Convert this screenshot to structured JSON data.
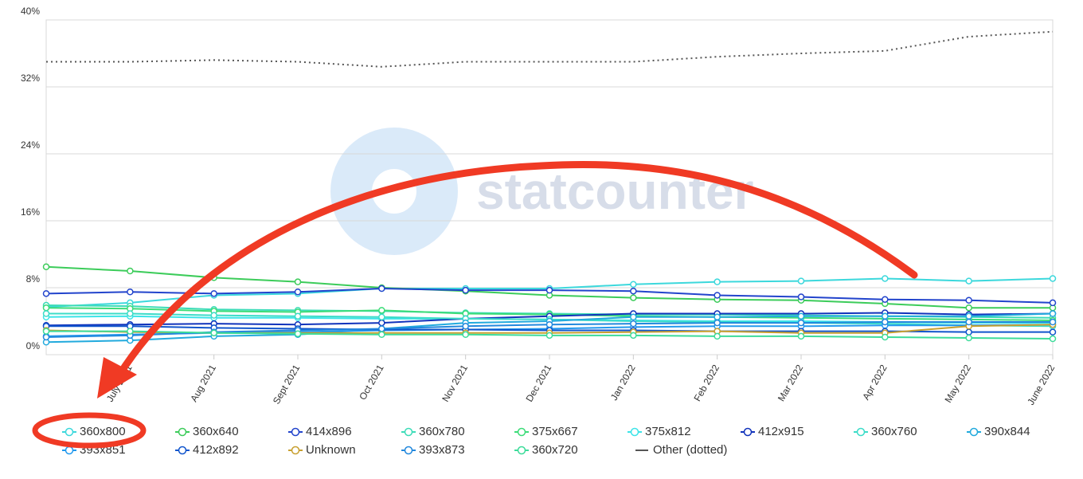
{
  "chart_data": {
    "type": "line",
    "watermark": "statcounter",
    "categories": [
      null,
      "July 2021",
      "Aug 2021",
      "Sept 2021",
      "Oct 2021",
      "Nov 2021",
      "Dec 2021",
      "Jan 2022",
      "Feb 2022",
      "Mar 2022",
      "Apr 2022",
      "May 2022",
      "June 2022"
    ],
    "ylim": [
      0,
      40
    ],
    "yticks": [
      {
        "value": 0,
        "label": "0%"
      },
      {
        "value": 8,
        "label": "8%"
      },
      {
        "value": 16,
        "label": "16%"
      },
      {
        "value": 24,
        "label": "24%"
      },
      {
        "value": 32,
        "label": "32%"
      },
      {
        "value": 40,
        "label": "40%"
      }
    ],
    "grid": true,
    "series": [
      {
        "name": "360x800",
        "color": "#3cd8dc",
        "values": [
          5.7,
          6.2,
          7.1,
          7.3,
          7.9,
          7.9,
          7.9,
          8.4,
          8.7,
          8.8,
          9.1,
          8.8,
          9.1
        ]
      },
      {
        "name": "360x640",
        "color": "#3ccc5a",
        "values": [
          10.5,
          10.0,
          9.2,
          8.7,
          8.0,
          7.6,
          7.1,
          6.8,
          6.6,
          6.5,
          6.1,
          5.6,
          5.6
        ]
      },
      {
        "name": "414x896",
        "color": "#2244cc",
        "values": [
          7.3,
          7.5,
          7.3,
          7.5,
          7.9,
          7.7,
          7.7,
          7.6,
          7.1,
          6.9,
          6.6,
          6.5,
          6.2
        ]
      },
      {
        "name": "360x780",
        "color": "#3cdcb8",
        "values": [
          5.9,
          5.8,
          5.4,
          5.3,
          5.2,
          5.0,
          4.9,
          4.8,
          4.8,
          4.7,
          4.6,
          4.5,
          4.4
        ]
      },
      {
        "name": "375x667",
        "color": "#3cdc78",
        "values": [
          5.6,
          5.5,
          5.2,
          5.1,
          5.3,
          4.9,
          4.8,
          4.6,
          4.5,
          4.4,
          4.3,
          4.2,
          4.1
        ]
      },
      {
        "name": "375x812",
        "color": "#3ce4e8",
        "values": [
          4.5,
          4.6,
          4.4,
          4.4,
          4.3,
          4.3,
          4.2,
          4.1,
          4.0,
          4.0,
          3.9,
          3.8,
          3.8
        ]
      },
      {
        "name": "412x915",
        "color": "#1133bb",
        "values": [
          3.5,
          3.6,
          3.7,
          3.6,
          3.8,
          4.3,
          4.6,
          4.9,
          4.9,
          4.9,
          5.0,
          4.8,
          4.9
        ]
      },
      {
        "name": "360x760",
        "color": "#3cdcc8",
        "values": [
          4.9,
          4.9,
          4.7,
          4.6,
          4.5,
          4.3,
          4.2,
          4.0,
          3.9,
          3.8,
          3.7,
          3.5,
          3.4
        ]
      },
      {
        "name": "390x844",
        "color": "#22aadd",
        "values": [
          1.5,
          1.7,
          2.2,
          2.4,
          3.1,
          3.8,
          4.0,
          4.5,
          4.5,
          4.6,
          4.6,
          4.6,
          4.9
        ]
      },
      {
        "name": "393x851",
        "color": "#2299ee",
        "values": [
          2.2,
          2.4,
          2.6,
          2.7,
          2.9,
          3.0,
          3.1,
          3.3,
          3.4,
          3.4,
          3.5,
          3.5,
          3.6
        ]
      },
      {
        "name": "412x892",
        "color": "#1155cc",
        "values": [
          3.4,
          3.4,
          3.2,
          3.1,
          3.0,
          3.0,
          2.9,
          2.9,
          2.8,
          2.8,
          2.8,
          2.7,
          2.7
        ]
      },
      {
        "name": "Unknown",
        "color": "#c8a030",
        "values": [
          2.9,
          2.7,
          2.6,
          2.6,
          2.6,
          2.6,
          2.6,
          2.7,
          2.8,
          2.6,
          2.6,
          3.4,
          3.6
        ]
      },
      {
        "name": "393x873",
        "color": "#2288dd",
        "values": [
          2.1,
          2.3,
          2.7,
          2.9,
          3.1,
          3.4,
          3.6,
          3.7,
          3.8,
          3.8,
          3.9,
          3.9,
          3.9
        ]
      },
      {
        "name": "360x720",
        "color": "#3cdc9a",
        "values": [
          2.8,
          2.8,
          2.6,
          2.5,
          2.4,
          2.4,
          2.3,
          2.3,
          2.2,
          2.2,
          2.1,
          2.0,
          1.9
        ]
      },
      {
        "name": "Other (dotted)",
        "color": "#555555",
        "dotted": true,
        "values": [
          35.0,
          35.0,
          35.2,
          35.0,
          34.4,
          35.0,
          35.0,
          35.0,
          35.6,
          36.0,
          36.3,
          38.0,
          38.6
        ]
      }
    ]
  }
}
